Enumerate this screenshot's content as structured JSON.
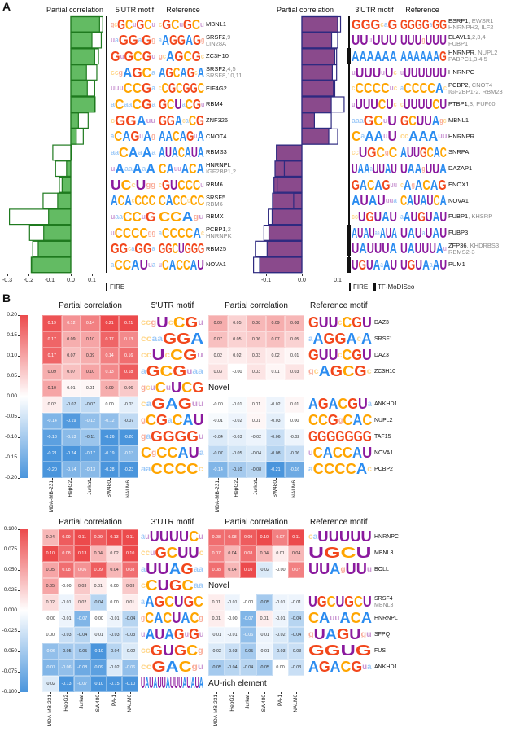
{
  "colors": {
    "A": "#2b8cf0",
    "C": "#ffa500",
    "G": "#f2471c",
    "U": "#8b1a9e",
    "green_fill": "#63bb63",
    "green_stroke": "#1f7a1f",
    "purple_fill": "#8a4a8c",
    "purple_stroke": "#2e2a80",
    "heat_pos": "#ec4a4c",
    "heat_neg": "#4a95dc"
  },
  "panel_a": {
    "label": "A",
    "left": {
      "title_bar": "Partial correlation",
      "title_motif": "5'UTR motif",
      "title_ref": "Reference",
      "axis_ticks": [
        "-0.3",
        "-0.2",
        "-0.1",
        "0.0",
        "0.1"
      ],
      "legend": [
        "FIRE"
      ],
      "rows": [
        {
          "motif": "gcGCuGCu",
          "ref": "cGCuGCu",
          "name": "MBNL1",
          "extra": "",
          "line2": "",
          "filled": 0.136,
          "outline": 0.151
        },
        {
          "motif": "uaGGaGg",
          "ref": "aAGGAGg",
          "name": "SRSF2",
          "extra": ",9",
          "line2": "LIN28A",
          "filled": 0.1,
          "outline": 0.144
        },
        {
          "motif": "GuGCGu",
          "ref": "gcAGCGc",
          "name": "ZC3H10",
          "extra": "",
          "line2": "",
          "filled": 0.113,
          "outline": 0.131
        },
        {
          "motif": "ccgAGCa",
          "ref": "AGCAGcA",
          "name": "SRSF2",
          "extra": ",4,5",
          "line2": "SRSF8,10,11",
          "filled": 0.074,
          "outline": 0.123
        },
        {
          "motif": "uuuCCGa",
          "ref": "cCGCGGC",
          "name": "EIF4G2",
          "extra": "",
          "line2": "",
          "filled": 0.078,
          "outline": 0.113
        },
        {
          "motif": "aCaaCGa",
          "ref": "GCUaCGu",
          "name": "RBM4",
          "extra": "",
          "line2": "",
          "filled": 0.113,
          "outline": 0.115
        },
        {
          "motif": "cGGAuu",
          "ref": "GGAcaCG",
          "name": "ZNF326",
          "extra": "",
          "line2": "",
          "filled": 0.036,
          "outline": 0.082
        },
        {
          "motif": "aCAGuAg",
          "ref": "AACAGuA",
          "name": "CNOT4",
          "extra": "",
          "line2": "",
          "filled": 0.026,
          "outline": 0.059
        },
        {
          "motif": "aaCAaAa",
          "ref": "AUACAUA",
          "name": "RBMS3",
          "extra": "",
          "line2": "",
          "filled": 0.0,
          "outline": -0.085
        },
        {
          "motif": "uAaaAaA",
          "ref": "CAuuACA",
          "name": "HNRNPL",
          "extra": "",
          "line2": "IGF2BP1,2",
          "filled": -0.02,
          "outline": -0.072
        },
        {
          "motif": "UCcUgg",
          "ref": "cGUCCCu",
          "name": "RBM6",
          "extra": "",
          "line2": "",
          "filled": -0.041,
          "outline": -0.054
        },
        {
          "motif": "ACAcCCC",
          "ref": "CACCcCC",
          "name": "SRSF5",
          "extra": "",
          "line2": "RBM6",
          "filled": -0.062,
          "outline": -0.131
        },
        {
          "motif": "uaaCCuG",
          "ref": "CCAgu",
          "name": "RBMX",
          "extra": "",
          "line2": "",
          "filled": -0.105,
          "outline": -0.29
        },
        {
          "motif": "uCCCCgg",
          "ref": "aCCCCAc",
          "name": "PCBP1",
          "extra": ",2",
          "line2": "HNRNPK",
          "filled": -0.128,
          "outline": -0.195
        },
        {
          "motif": "GGcaGGa",
          "ref": "GGCUGGG",
          "name": "RBM25",
          "extra": "",
          "line2": "",
          "filled": -0.154,
          "outline": -0.18
        },
        {
          "motif": "aCCAUua",
          "ref": "uCACCAU",
          "name": "NOVA1",
          "extra": "",
          "line2": "",
          "filled": -0.187,
          "outline": -0.185
        }
      ]
    },
    "right": {
      "title_bar": "Partial correlation",
      "title_motif": "3'UTR motif",
      "title_ref": "Reference",
      "axis_ticks": [
        "-0.1",
        "0.0",
        "0.1"
      ],
      "legend": [
        "FIRE",
        "TF-MoDISco"
      ],
      "rows": [
        {
          "motif": "GGGcaG",
          "ref": "GGGGaGG",
          "name": "ESRP1",
          "extra": ", EWSR1",
          "line2": "HNRNPH2, ILF2",
          "filled": 0.1,
          "outline": 0.108,
          "tfmodisco": false
        },
        {
          "motif": "UUuUUU",
          "ref": "UUUgUUU",
          "name": "ELAVL1",
          "extra": ",2,3,4",
          "line2": "FUBP1",
          "filled": 0.083,
          "outline": 0.1,
          "tfmodisco": false
        },
        {
          "motif": "AAAAAA",
          "ref": "AAAAAAG",
          "name": "HNRNPR",
          "extra": ", NUPL2",
          "line2": "PABPC1,3,4,5",
          "filled": 0.092,
          "outline": 0.097,
          "tfmodisco": true
        },
        {
          "motif": "uUUUuUc",
          "ref": "uUUUUUU",
          "name": "HNRNPC",
          "extra": "",
          "line2": "",
          "filled": 0.085,
          "outline": 0.097,
          "tfmodisco": false
        },
        {
          "motif": "cCCCCuc",
          "ref": "aCCCCAc",
          "name": "PCBP2",
          "extra": ", CNOT4",
          "line2": "IGF2BP1-2, RBM23",
          "filled": 0.088,
          "outline": 0.092,
          "tfmodisco": false
        },
        {
          "motif": "uUUUCUc",
          "ref": "cUUUUCU",
          "name": "PTBP1",
          "extra": ",3, PUF60",
          "line2": "",
          "filled": 0.082,
          "outline": 0.118,
          "tfmodisco": false
        },
        {
          "motif": "aaaGCuU",
          "ref": "GCUUAgc",
          "name": "MBNL1",
          "extra": "",
          "line2": "",
          "filled": 0.035,
          "outline": 0.082,
          "tfmodisco": false
        },
        {
          "motif": "CaAAuU",
          "ref": "ccAAAuu",
          "name": "HNRNPR",
          "extra": "",
          "line2": "",
          "filled": 0.075,
          "outline": 0.1,
          "tfmodisco": false
        },
        {
          "motif": "ccUGCgC",
          "ref": "AUUGCAC",
          "name": "SNRPA",
          "extra": "",
          "line2": "",
          "filled": -0.071,
          "outline": -0.071,
          "tfmodisco": false
        },
        {
          "motif": "UAAaUUAU",
          "ref": "UAAgUUA",
          "name": "DAZAP1",
          "extra": "",
          "line2": "",
          "filled": -0.075,
          "outline": -0.049,
          "tfmodisco": false
        },
        {
          "motif": "GACAGuu",
          "ref": "cAgACAG",
          "name": "ENOX1",
          "extra": "",
          "line2": "",
          "filled": -0.078,
          "outline": -0.069,
          "tfmodisco": false
        },
        {
          "motif": "AUAUuua",
          "ref": "CAUAUCA",
          "name": "NOVA1",
          "extra": "",
          "line2": "",
          "filled": -0.082,
          "outline": -0.023,
          "tfmodisco": false
        },
        {
          "motif": "ccUGUAU",
          "ref": "aAUGUAU",
          "name": "FUBP1",
          "extra": ", KHSRP",
          "line2": "",
          "filled": -0.083,
          "outline": -0.094,
          "tfmodisco": false
        },
        {
          "motif": "AUAUaaAUA",
          "ref": "UAUaUAU",
          "name": "FUBP3",
          "extra": "",
          "line2": "",
          "filled": -0.092,
          "outline": -0.106,
          "tfmodisco": true
        },
        {
          "motif": "UAUUUA",
          "ref": "UAUUUAu",
          "name": "ZFP36",
          "extra": ", KHDRBS3",
          "line2": "RBMS2-3",
          "filled": -0.097,
          "outline": -0.13,
          "tfmodisco": true
        },
        {
          "motif": "UGUAaAU",
          "ref": "UGUAaAU",
          "name": "PUM1",
          "extra": "",
          "line2": "",
          "filled": -0.118,
          "outline": -0.135,
          "tfmodisco": true
        }
      ]
    }
  },
  "panel_b": {
    "label": "B",
    "top": {
      "title_left": "Partial correlation",
      "title_motif": "5'UTR motif",
      "title_right": "Partial correlation",
      "title_ref": "Reference motif",
      "colorbar_ticks": [
        "0.20",
        "0.15",
        "0.10",
        "0.05",
        "0.00",
        "-0.05",
        "-0.10",
        "-0.15",
        "-0.20"
      ],
      "columns": [
        "MDA-MB-231",
        "HepG2",
        "Jurkat",
        "SW480",
        "NALM6"
      ],
      "rows": [
        {
          "cells": [
            "0.19",
            "0.12",
            "0.14",
            "0.21",
            "0.21"
          ],
          "motif": "ccgUcCGu",
          "right": {
            "cells": [
              "0.09",
              "0.05",
              "0.08",
              "0.09",
              "0.08"
            ],
            "ref": "GUUcCGU",
            "name": "DAZ3"
          }
        },
        {
          "cells": [
            "0.17",
            "0.09",
            "0.10",
            "0.17",
            "0.13"
          ],
          "motif": "ccaaGGA",
          "right": {
            "cells": [
              "0.07",
              "0.05",
              "0.06",
              "0.07",
              "0.05"
            ],
            "ref": "aAGGAcA",
            "name": "SRSF1"
          }
        },
        {
          "cells": [
            "0.17",
            "0.07",
            "0.09",
            "0.14",
            "0.16"
          ],
          "motif": "ccUcCGu",
          "right": {
            "cells": [
              "0.02",
              "0.02",
              "0.03",
              "0.02",
              "0.01"
            ],
            "ref": "GUUcCGU",
            "name": "DAZ3"
          }
        },
        {
          "cells": [
            "0.09",
            "0.07",
            "0.10",
            "0.13",
            "0.18"
          ],
          "motif": "aGCGuaa",
          "right": {
            "cells": [
              "0.03",
              "-0.00",
              "0.03",
              "0.01",
              "0.03"
            ],
            "ref": "gcAGCGc",
            "name": "ZC3H10"
          }
        },
        {
          "cells": [
            "0.10",
            "0.01",
            "0.01",
            "0.09",
            "0.06"
          ],
          "motif": "gcuCuUCG",
          "group_label": "Novel"
        },
        {
          "cells": [
            "0.02",
            "-0.07",
            "-0.07",
            "0.00",
            "-0.03"
          ],
          "motif": "caGAGuu",
          "right": {
            "cells": [
              "-0.00",
              "-0.01",
              "0.01",
              "-0.02",
              "0.01"
            ],
            "ref": "AGACGUa",
            "name": "ANKHD1"
          }
        },
        {
          "cells": [
            "-0.14",
            "-0.19",
            "-0.12",
            "-0.12",
            "-0.07"
          ],
          "motif": "gCGaCAU",
          "right": {
            "cells": [
              "-0.01",
              "-0.02",
              "0.01",
              "-0.03",
              "0.00"
            ],
            "ref": "CCGgCAC",
            "name": "NUPL2"
          }
        },
        {
          "cells": [
            "-0.18",
            "-0.13",
            "-0.11",
            "-0.26",
            "-0.20"
          ],
          "motif": "gaGGGGu",
          "right": {
            "cells": [
              "-0.04",
              "-0.03",
              "-0.02",
              "-0.06",
              "-0.02"
            ],
            "ref": "GGGGGGG",
            "name": "TAF15"
          }
        },
        {
          "cells": [
            "-0.21",
            "-0.24",
            "-0.17",
            "-0.19",
            "-0.13"
          ],
          "motif": "CgCCAUa",
          "right": {
            "cells": [
              "-0.07",
              "-0.05",
              "-0.04",
              "-0.08",
              "-0.06"
            ],
            "ref": "uCACCAU",
            "name": "NOVA1"
          }
        },
        {
          "cells": [
            "-0.20",
            "-0.14",
            "-0.13",
            "-0.28",
            "-0.23"
          ],
          "motif": "aaCCCCc",
          "right": {
            "cells": [
              "-0.14",
              "-0.10",
              "-0.08",
              "-0.21",
              "-0.16"
            ],
            "ref": "aCCCCAc",
            "name": "PCBP2"
          }
        }
      ]
    },
    "bottom": {
      "title_left": "Partial correlation",
      "title_motif": "3'UTR motif",
      "title_right": "Partial correlation",
      "title_ref": "Reference motif",
      "colorbar_ticks": [
        "0.100",
        "0.075",
        "0.050",
        "0.025",
        "0.000",
        "-0.025",
        "-0.050",
        "-0.075",
        "-0.100"
      ],
      "columns": [
        "MDA-MB-231",
        "HepG2",
        "Jurkat",
        "SW480",
        "PA-1",
        "NALM6"
      ],
      "rows": [
        {
          "cells": [
            "0.04",
            "0.09",
            "0.11",
            "0.09",
            "0.13",
            "0.11"
          ],
          "motif": "auUUUUCu",
          "right": {
            "cells": [
              "0.08",
              "0.08",
              "0.09",
              "0.10",
              "0.07",
              "0.11"
            ],
            "ref": "caUUUUU",
            "name": "MBNL3_HNRNPC",
            "label": "HNRNPC"
          }
        },
        {
          "cells": [
            "0.10",
            "0.08",
            "0.13",
            "0.04",
            "0.02",
            "0.10"
          ],
          "motif": "ccuGCUUc",
          "right": {
            "cells": [
              "0.07",
              "0.04",
              "0.08",
              "0.04",
              "0.01",
              "0.04"
            ],
            "ref": "UGCU",
            "label": "MBNL3"
          }
        },
        {
          "cells": [
            "0.05",
            "0.08",
            "0.06",
            "0.09",
            "0.04",
            "0.08"
          ],
          "motif": "aUUAGaa",
          "right": {
            "cells": [
              "0.08",
              "0.04",
              "0.10",
              "-0.02",
              "-0.00",
              "0.07"
            ],
            "ref": "UUAgUUu",
            "label": "BOLL"
          }
        },
        {
          "cells": [
            "0.05",
            "-0.00",
            "0.03",
            "0.01",
            "0.00",
            "0.03"
          ],
          "motif": "cCUGCaa",
          "group_label": "Novel"
        },
        {
          "cells": [
            "0.02",
            "-0.01",
            "0.02",
            "-0.04",
            "0.00",
            "0.01"
          ],
          "motif": "aAGCUGC",
          "right": {
            "cells": [
              "0.01",
              "-0.01",
              "-0.00",
              "-0.05",
              "-0.01",
              "-0.01"
            ],
            "ref": "UGCUGCU",
            "label": "SRSF4",
            "label2": "MBNL3"
          }
        },
        {
          "cells": [
            "-0.00",
            "-0.01",
            "-0.07",
            "-0.00",
            "-0.01",
            "-0.04"
          ],
          "motif": "gCACUACg",
          "right": {
            "cells": [
              "0.01",
              "-0.00",
              "-0.07",
              "0.01",
              "-0.01",
              "-0.04"
            ],
            "ref": "CAuuACA",
            "label": "HNRNPL"
          }
        },
        {
          "cells": [
            "0.00",
            "-0.03",
            "-0.04",
            "-0.01",
            "-0.03",
            "-0.03"
          ],
          "motif": "uAUAGuGu",
          "right": {
            "cells": [
              "-0.01",
              "-0.01",
              "-0.06",
              "-0.01",
              "-0.02",
              "-0.04"
            ],
            "ref": "gUAGUgu",
            "label": "SFPQ"
          }
        },
        {
          "cells": [
            "-0.06",
            "-0.05",
            "-0.05",
            "-0.10",
            "-0.04",
            "-0.02"
          ],
          "motif": "ccGUGCg",
          "right": {
            "cells": [
              "-0.02",
              "-0.03",
              "-0.05",
              "-0.01",
              "-0.03",
              "-0.03"
            ],
            "ref": "GGUG",
            "label": "FUS"
          }
        },
        {
          "cells": [
            "-0.07",
            "-0.06",
            "-0.08",
            "-0.09",
            "-0.02",
            "-0.06"
          ],
          "motif": "ccGACgu",
          "right": {
            "cells": [
              "-0.05",
              "-0.04",
              "-0.04",
              "-0.05",
              "0.00",
              "-0.03"
            ],
            "ref": "AGACGua",
            "label": "ANKHD1"
          }
        },
        {
          "cells": [
            "-0.02",
            "-0.13",
            "-0.07",
            "-0.10",
            "-0.15",
            "-0.10"
          ],
          "motif": "UAUAUUAUUUAUAUA",
          "group_label": "AU-rich element"
        }
      ]
    }
  }
}
